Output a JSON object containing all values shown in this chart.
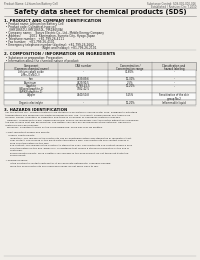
{
  "bg_color": "#f0ede8",
  "header_left": "Product Name: Lithium Ion Battery Cell",
  "header_right_line1": "Substance Control: SDS-001-000-016",
  "header_right_line2": "Established / Revision: Dec.7.2010",
  "main_title": "Safety data sheet for chemical products (SDS)",
  "section1_title": "1. PRODUCT AND COMPANY IDENTIFICATION",
  "section1_lines": [
    "  • Product name: Lithium Ion Battery Cell",
    "  • Product code: Cylindrical-type cell",
    "      (IHR18650U, IHR18650L, IHR18650A)",
    "  • Company name:    Sanyo Electric Co., Ltd., Mobile Energy Company",
    "  • Address:          2001  Kamimahon, Sumoto-City, Hyogo, Japan",
    "  • Telephone number:   +81-799-26-4111",
    "  • Fax number:   +81-799-26-4101",
    "  • Emergency telephone number (daytime): +81-799-26-2662",
    "                                           (Night and holiday): +81-799-26-2101"
  ],
  "section2_title": "2. COMPOSITION / INFORMATION ON INGREDIENTS",
  "section2_sub": "  • Substance or preparation: Preparation",
  "section2_sub2": "  • Information about the chemical nature of product:",
  "table_header_row1": [
    "Component",
    "CAS number",
    "Concentration /",
    "Classification and"
  ],
  "table_header_row2": [
    "(Common chemical name)",
    "",
    "Concentration range",
    "hazard labeling"
  ],
  "table_rows": [
    [
      "Lithium cobalt oxide",
      "-",
      "30-60%",
      "-"
    ],
    [
      "(LiMn₂(CoNiO₂))",
      "",
      "",
      ""
    ],
    [
      "Iron",
      "7439-89-6",
      "10-30%",
      "-"
    ],
    [
      "Aluminum",
      "7429-90-5",
      "2-5%",
      "-"
    ],
    [
      "Graphite",
      "77768-42-5",
      "10-20%",
      "-"
    ],
    [
      "(Waxed graphite-1)",
      "7782-42-5",
      "",
      ""
    ],
    [
      "(AF/KN graphite-1)",
      "",
      "",
      ""
    ],
    [
      "Copper",
      "7440-50-8",
      "5-15%",
      "Sensitization of the skin"
    ],
    [
      "",
      "",
      "",
      "group No.2"
    ],
    [
      "Organic electrolyte",
      "-",
      "10-20%",
      "Inflammable liquid"
    ]
  ],
  "section3_title": "3. HAZARDS IDENTIFICATION",
  "section3_text": [
    "  For the battery cell, chemical materials are stored in a hermetically sealed metal case, designed to withstand",
    "  temperatures and pressures encountered during normal use. As a result, during normal use, there is no",
    "  physical danger of ignition or expiration and there is no danger of hazardous materials leakage.",
    "    However, if exposed to a fire, added mechanical shocks, decomposed, shorted electric without any measures,",
    "  the gas release vent will be operated. The battery cell case will be breached at fire-extreme. Hazardous",
    "  materials may be released.",
    "    Moreover, if heated strongly by the surrounding fire, some gas may be emitted.",
    "",
    "  • Most important hazard and effects:",
    "      Human health effects:",
    "        Inhalation: The release of the electrolyte has an anesthesia action and stimulates in respiratory tract.",
    "        Skin contact: The release of the electrolyte stimulates a skin. The electrolyte skin contact causes a",
    "        sore and stimulation on the skin.",
    "        Eye contact: The release of the electrolyte stimulates eyes. The electrolyte eye contact causes a sore",
    "        and stimulation on the eye. Especially, a substance that causes a strong inflammation of the eye is",
    "        contained.",
    "        Environmental effects: Since a battery cell remains in the environment, do not throw out it into the",
    "        environment.",
    "",
    "  • Specific hazards:",
    "        If the electrolyte contacts with water, it will generate detrimental hydrogen fluoride.",
    "        Since the used electrolyte is inflammable liquid, do not bring close to fire."
  ]
}
